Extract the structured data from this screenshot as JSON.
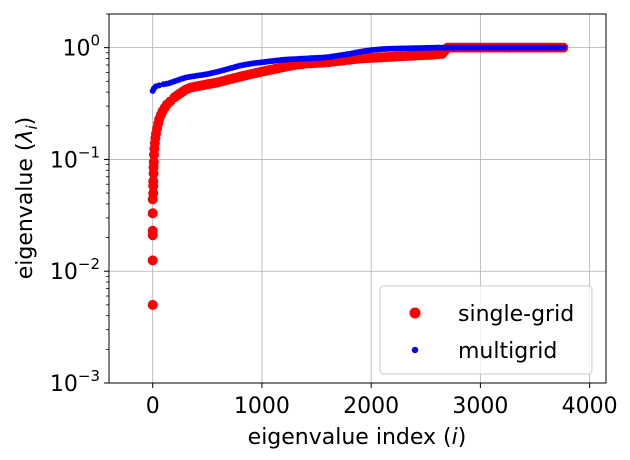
{
  "chart_data": {
    "type": "scatter",
    "xlabel": "eigenvalue index (i)",
    "ylabel": "eigenvalue (λ_i)",
    "xlim": [
      -400,
      4150
    ],
    "ylim": [
      0.001,
      2.0
    ],
    "yscale": "log",
    "grid": true,
    "legend_position": "bottom-right",
    "x_ticks": [
      0,
      1000,
      2000,
      3000,
      4000
    ],
    "x_tick_labels": [
      "0",
      "1000",
      "2000",
      "3000",
      "4000"
    ],
    "y_ticks": [
      0.001,
      0.01,
      0.1,
      1
    ],
    "y_tick_labels": [
      {
        "base": "10",
        "exp": "−3"
      },
      {
        "base": "10",
        "exp": "−2"
      },
      {
        "base": "10",
        "exp": "−1"
      },
      {
        "base": "10",
        "exp": "0"
      }
    ],
    "series": [
      {
        "name": "single-grid",
        "color": "#ff0000",
        "marker": "circle",
        "points": [
          [
            0,
            0.005
          ],
          [
            0,
            0.0125
          ],
          [
            0,
            0.021
          ],
          [
            0,
            0.023
          ],
          [
            0,
            0.033
          ],
          [
            0,
            0.044
          ],
          [
            5,
            0.05
          ],
          [
            5,
            0.058
          ],
          [
            5,
            0.064
          ],
          [
            8,
            0.075
          ],
          [
            8,
            0.085
          ],
          [
            10,
            0.095
          ],
          [
            12,
            0.11
          ],
          [
            15,
            0.125
          ],
          [
            20,
            0.14
          ],
          [
            25,
            0.155
          ],
          [
            30,
            0.17
          ],
          [
            40,
            0.19
          ],
          [
            50,
            0.21
          ],
          [
            60,
            0.23
          ],
          [
            75,
            0.25
          ],
          [
            90,
            0.27
          ],
          [
            110,
            0.29
          ],
          [
            130,
            0.31
          ],
          [
            160,
            0.33
          ],
          [
            200,
            0.36
          ],
          [
            250,
            0.39
          ],
          [
            300,
            0.42
          ],
          [
            350,
            0.44
          ],
          [
            400,
            0.45
          ],
          [
            500,
            0.47
          ],
          [
            600,
            0.49
          ],
          [
            700,
            0.52
          ],
          [
            800,
            0.55
          ],
          [
            900,
            0.58
          ],
          [
            1000,
            0.61
          ],
          [
            1100,
            0.64
          ],
          [
            1200,
            0.67
          ],
          [
            1300,
            0.7
          ],
          [
            1400,
            0.72
          ],
          [
            1500,
            0.73
          ],
          [
            1600,
            0.74
          ],
          [
            1700,
            0.76
          ],
          [
            1800,
            0.78
          ],
          [
            1900,
            0.8
          ],
          [
            2000,
            0.81
          ],
          [
            2100,
            0.82
          ],
          [
            2200,
            0.83
          ],
          [
            2300,
            0.84
          ],
          [
            2400,
            0.85
          ],
          [
            2500,
            0.86
          ],
          [
            2600,
            0.87
          ],
          [
            2650,
            0.88
          ],
          [
            2700,
            1.0
          ],
          [
            2900,
            1.0
          ],
          [
            3100,
            1.0
          ],
          [
            3300,
            1.0
          ],
          [
            3500,
            1.0
          ],
          [
            3700,
            1.0
          ],
          [
            3760,
            1.0
          ]
        ]
      },
      {
        "name": "multigrid",
        "color": "#0000ff",
        "marker": "dot",
        "points": [
          [
            0,
            0.41
          ],
          [
            10,
            0.43
          ],
          [
            30,
            0.45
          ],
          [
            60,
            0.46
          ],
          [
            100,
            0.47
          ],
          [
            150,
            0.48
          ],
          [
            200,
            0.5
          ],
          [
            250,
            0.52
          ],
          [
            300,
            0.54
          ],
          [
            400,
            0.56
          ],
          [
            500,
            0.58
          ],
          [
            600,
            0.61
          ],
          [
            700,
            0.65
          ],
          [
            800,
            0.69
          ],
          [
            900,
            0.72
          ],
          [
            1000,
            0.74
          ],
          [
            1100,
            0.76
          ],
          [
            1200,
            0.78
          ],
          [
            1300,
            0.79
          ],
          [
            1400,
            0.8
          ],
          [
            1500,
            0.81
          ],
          [
            1600,
            0.82
          ],
          [
            1700,
            0.85
          ],
          [
            1800,
            0.88
          ],
          [
            1900,
            0.92
          ],
          [
            2000,
            0.95
          ],
          [
            2100,
            0.97
          ],
          [
            2200,
            0.98
          ],
          [
            2400,
            0.99
          ],
          [
            2600,
            1.0
          ],
          [
            2800,
            1.0
          ],
          [
            3000,
            1.0
          ],
          [
            3200,
            1.0
          ],
          [
            3400,
            1.0
          ],
          [
            3600,
            1.0
          ],
          [
            3760,
            1.0
          ]
        ]
      }
    ]
  }
}
